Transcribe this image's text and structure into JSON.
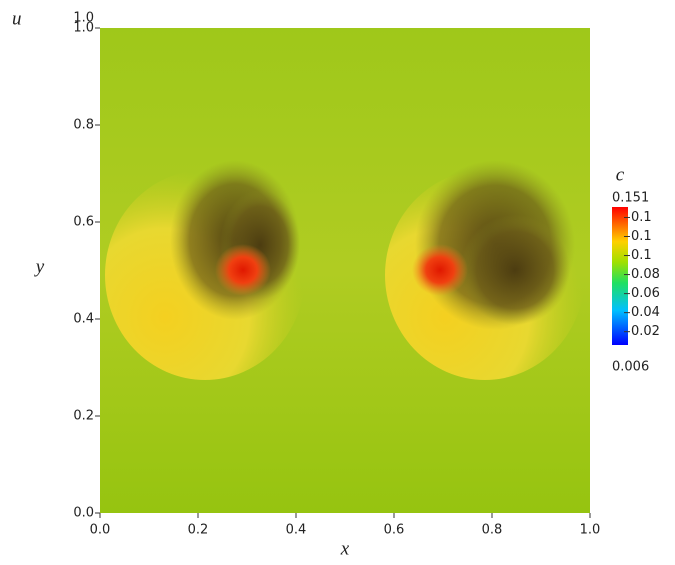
{
  "chart_data": {
    "type": "heatmap",
    "xlabel": "x",
    "ylabel": "y",
    "xlim": [
      0,
      1
    ],
    "ylim": [
      0,
      1
    ],
    "xticks": [
      {
        "value": 0,
        "label": "0.0"
      },
      0.2,
      0.4,
      0.6,
      0.8,
      {
        "value": 1,
        "label": "1.0"
      }
    ],
    "yticks": [
      {
        "value": 0,
        "label": "0.0"
      },
      0.2,
      0.4,
      0.6,
      0.8,
      {
        "value": 1,
        "label": "1.0"
      }
    ],
    "u_axis": {
      "label": "u",
      "ticks": [
        {
          "value": 1,
          "label": "1.0"
        }
      ]
    },
    "colorbar": {
      "title": "c",
      "lim": [
        0.006,
        0.151
      ],
      "lim_labels": [
        "0.006",
        "0.151"
      ],
      "ticks": [
        {
          "value": 0.14,
          "label": "0.1"
        },
        {
          "value": 0.12,
          "label": "0.1"
        },
        {
          "value": 0.1,
          "label": "0.1"
        },
        0.08,
        0.06,
        0.04,
        0.02
      ]
    }
  }
}
